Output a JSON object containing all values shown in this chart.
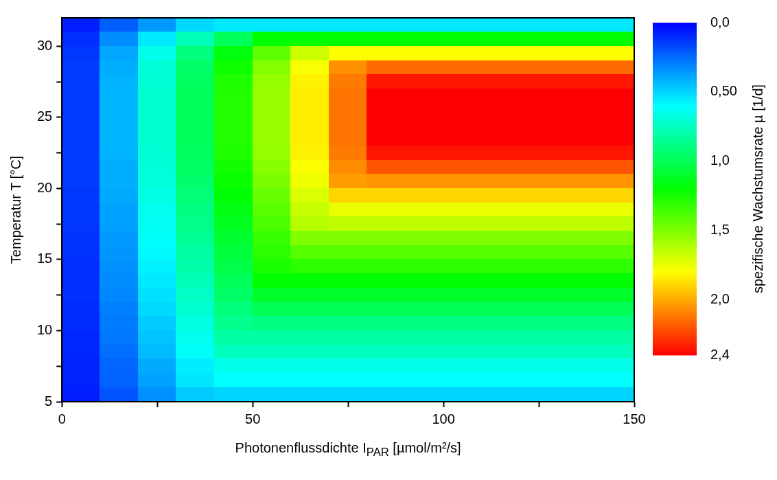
{
  "chart_data": {
    "type": "heatmap",
    "xlabel": "Photonenflussdichte I$_{PAR}$ [µmol/m²/s]",
    "ylabel": "Temperatur T [°C]",
    "clabel": "spezifische Wachstumsrate µ [1/d]",
    "xlim": [
      0,
      150
    ],
    "xticks": [
      0,
      {
        "value": 25,
        "label": null
      },
      50,
      {
        "value": 75,
        "label": null
      },
      100,
      {
        "value": 125,
        "label": null
      },
      150
    ],
    "ylim": [
      5,
      32
    ],
    "yticks": [
      5,
      {
        "value": 7.5,
        "label": null
      },
      10,
      {
        "value": 12.5,
        "label": null
      },
      15,
      {
        "value": 17.5,
        "label": null
      },
      20,
      {
        "value": 22.5,
        "label": null
      },
      25,
      {
        "value": 27.5,
        "label": null
      },
      30
    ],
    "clim": [
      0,
      2.4
    ],
    "cticks": [
      {
        "value": 0,
        "label": "0,0"
      },
      {
        "value": 0.5,
        "label": "0,50"
      },
      {
        "value": 1,
        "label": "1,0"
      },
      {
        "value": 1.5,
        "label": "1,5"
      },
      {
        "value": 2,
        "label": "2,0"
      },
      {
        "value": 2.4,
        "label": "2,4"
      }
    ],
    "cells": [
      [
        0.07,
        0.22,
        0.36,
        0.51,
        0.55,
        0.55,
        0.55,
        0.55,
        0.55,
        0.55,
        0.55,
        0.55,
        0.55,
        0.55,
        0.55
      ],
      [
        0.11,
        0.33,
        0.55,
        0.77,
        0.99,
        1.2,
        1.2,
        1.2,
        1.2,
        1.2,
        1.2,
        1.2,
        1.2,
        1.2,
        1.2
      ],
      [
        0.13,
        0.39,
        0.65,
        0.91,
        1.17,
        1.42,
        1.68,
        1.8,
        1.8,
        1.8,
        1.8,
        1.8,
        1.8,
        1.8,
        1.8
      ],
      [
        0.14,
        0.41,
        0.69,
        0.96,
        1.23,
        1.51,
        1.78,
        2.06,
        2.15,
        2.15,
        2.15,
        2.15,
        2.15,
        2.15,
        2.15
      ],
      [
        0.14,
        0.42,
        0.7,
        0.98,
        1.27,
        1.55,
        1.83,
        2.11,
        2.35,
        2.35,
        2.35,
        2.35,
        2.35,
        2.35,
        2.35
      ],
      [
        0.14,
        0.43,
        0.71,
        0.99,
        1.28,
        1.56,
        1.84,
        2.13,
        2.4,
        2.4,
        2.4,
        2.4,
        2.4,
        2.4,
        2.4
      ],
      [
        0.14,
        0.43,
        0.71,
        0.99,
        1.28,
        1.56,
        1.84,
        2.13,
        2.4,
        2.4,
        2.4,
        2.4,
        2.4,
        2.4,
        2.4
      ],
      [
        0.14,
        0.43,
        0.71,
        0.99,
        1.28,
        1.56,
        1.84,
        2.13,
        2.4,
        2.4,
        2.4,
        2.4,
        2.4,
        2.4,
        2.4
      ],
      [
        0.14,
        0.43,
        0.71,
        0.99,
        1.28,
        1.56,
        1.84,
        2.13,
        2.4,
        2.4,
        2.4,
        2.4,
        2.4,
        2.4,
        2.4
      ],
      [
        0.14,
        0.42,
        0.7,
        0.98,
        1.27,
        1.55,
        1.83,
        2.11,
        2.35,
        2.35,
        2.35,
        2.35,
        2.35,
        2.35,
        2.35
      ],
      [
        0.14,
        0.41,
        0.69,
        0.97,
        1.24,
        1.52,
        1.79,
        2.07,
        2.2,
        2.2,
        2.2,
        2.2,
        2.2,
        2.2,
        2.2
      ],
      [
        0.14,
        0.41,
        0.68,
        0.95,
        1.22,
        1.49,
        1.76,
        2.03,
        2.05,
        2.05,
        2.05,
        2.05,
        2.05,
        2.05,
        2.05
      ],
      [
        0.13,
        0.4,
        0.66,
        0.92,
        1.19,
        1.45,
        1.71,
        1.9,
        1.9,
        1.9,
        1.9,
        1.9,
        1.9,
        1.9,
        1.9
      ],
      [
        0.13,
        0.38,
        0.64,
        0.9,
        1.15,
        1.41,
        1.67,
        1.75,
        1.75,
        1.75,
        1.75,
        1.75,
        1.75,
        1.75,
        1.75
      ],
      [
        0.13,
        0.38,
        0.63,
        0.88,
        1.13,
        1.38,
        1.63,
        1.65,
        1.65,
        1.65,
        1.65,
        1.65,
        1.65,
        1.65,
        1.65
      ],
      [
        0.12,
        0.36,
        0.61,
        0.85,
        1.09,
        1.33,
        1.5,
        1.5,
        1.5,
        1.5,
        1.5,
        1.5,
        1.5,
        1.5,
        1.5
      ],
      [
        0.12,
        0.35,
        0.59,
        0.82,
        1.06,
        1.3,
        1.4,
        1.4,
        1.4,
        1.4,
        1.4,
        1.4,
        1.4,
        1.4,
        1.4
      ],
      [
        0.11,
        0.34,
        0.57,
        0.8,
        1.03,
        1.26,
        1.3,
        1.3,
        1.3,
        1.3,
        1.3,
        1.3,
        1.3,
        1.3,
        1.3
      ],
      [
        0.11,
        0.33,
        0.55,
        0.77,
        0.99,
        1.2,
        1.2,
        1.2,
        1.2,
        1.2,
        1.2,
        1.2,
        1.2,
        1.2,
        1.2
      ],
      [
        0.11,
        0.32,
        0.53,
        0.74,
        0.96,
        1.1,
        1.1,
        1.1,
        1.1,
        1.1,
        1.1,
        1.1,
        1.1,
        1.1,
        1.1
      ],
      [
        0.1,
        0.3,
        0.51,
        0.71,
        0.91,
        1.0,
        1.0,
        1.0,
        1.0,
        1.0,
        1.0,
        1.0,
        1.0,
        1.0,
        1.0
      ],
      [
        0.1,
        0.29,
        0.48,
        0.67,
        0.87,
        0.9,
        0.9,
        0.9,
        0.9,
        0.9,
        0.9,
        0.9,
        0.9,
        0.9,
        0.9
      ],
      [
        0.09,
        0.28,
        0.46,
        0.64,
        0.82,
        0.82,
        0.82,
        0.82,
        0.82,
        0.82,
        0.82,
        0.82,
        0.82,
        0.82,
        0.82
      ],
      [
        0.09,
        0.26,
        0.44,
        0.61,
        0.75,
        0.75,
        0.75,
        0.75,
        0.75,
        0.75,
        0.75,
        0.75,
        0.75,
        0.75,
        0.75
      ],
      [
        0.08,
        0.24,
        0.4,
        0.56,
        0.65,
        0.65,
        0.65,
        0.65,
        0.65,
        0.65,
        0.65,
        0.65,
        0.65,
        0.65,
        0.65
      ],
      [
        0.08,
        0.23,
        0.38,
        0.54,
        0.6,
        0.6,
        0.6,
        0.6,
        0.6,
        0.6,
        0.6,
        0.6,
        0.6,
        0.6,
        0.6
      ],
      [
        0.07,
        0.2,
        0.34,
        0.48,
        0.5,
        0.5,
        0.5,
        0.5,
        0.5,
        0.5,
        0.5,
        0.5,
        0.5,
        0.5,
        0.5
      ]
    ]
  }
}
